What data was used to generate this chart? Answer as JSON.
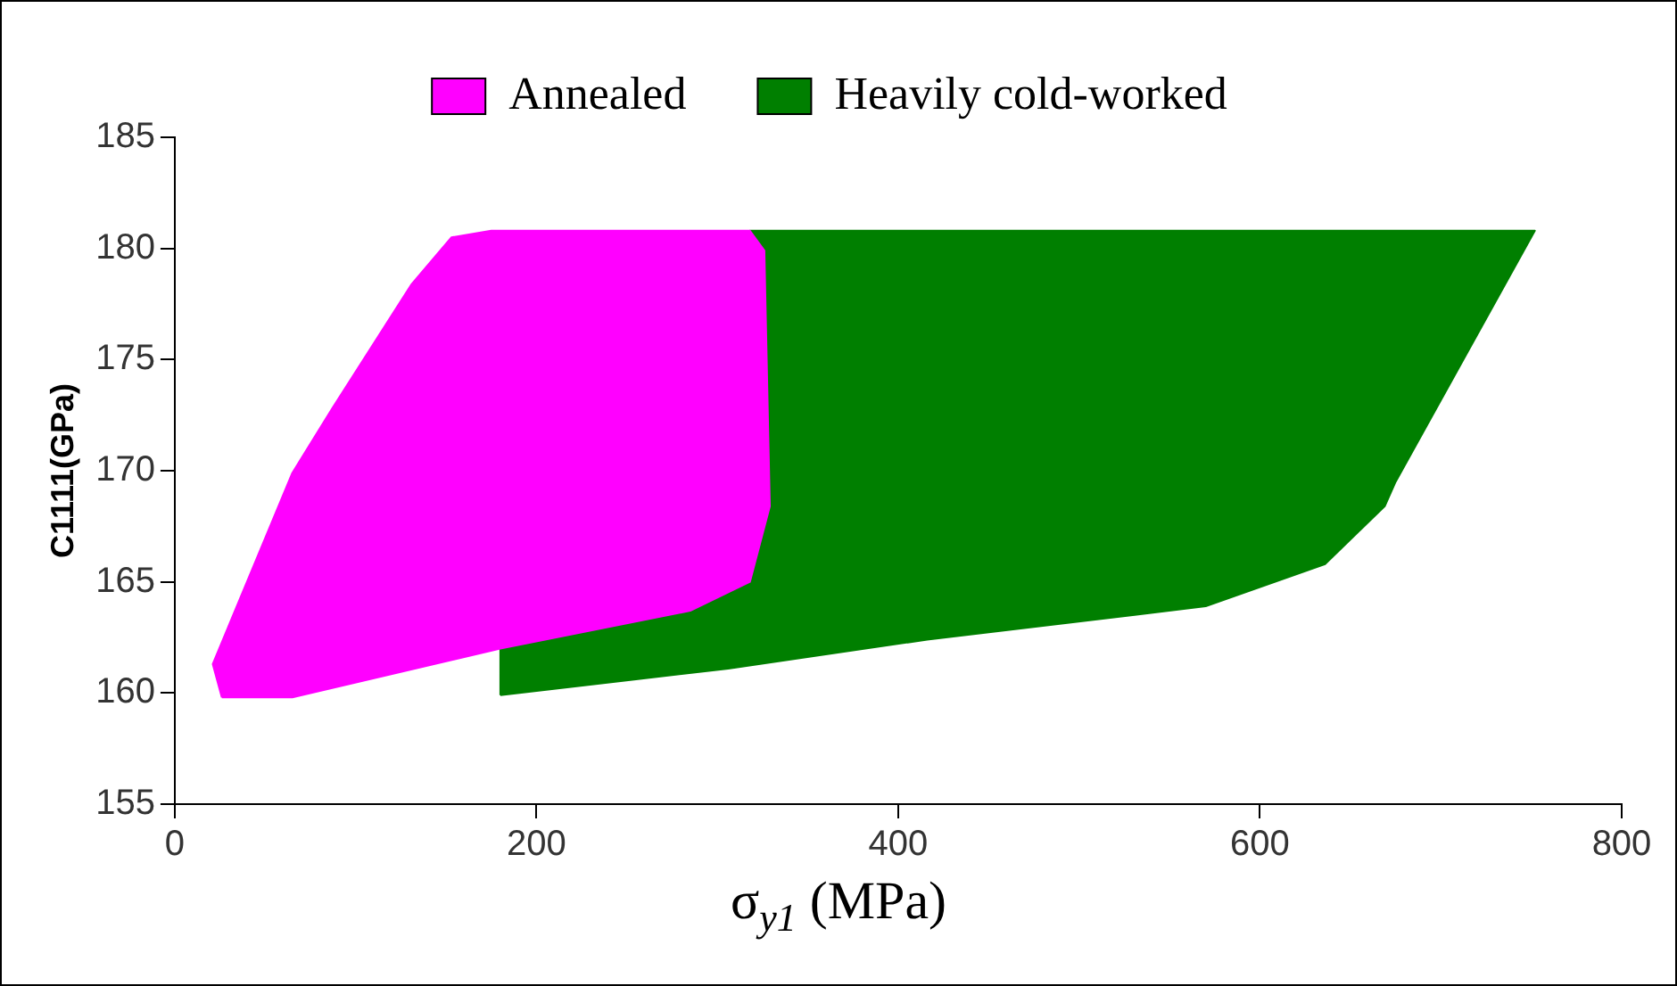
{
  "chart_data": {
    "type": "area",
    "xlabel": "σ$_{y1}$ (MPa)",
    "ylabel": "C1111(GPa)",
    "xlim": [
      0,
      800
    ],
    "xticks": [
      0,
      200,
      400,
      600,
      800
    ],
    "ylim": [
      155,
      185
    ],
    "yticks": [
      155,
      160,
      165,
      170,
      175,
      180,
      185
    ],
    "grid": false,
    "legend": "top",
    "marker": "none",
    "series": [
      {
        "name": "Annealed",
        "color": "#ff00ff",
        "x": [
          26,
          21,
          65,
          87,
          131,
          153,
          175,
          318,
          326,
          329,
          318,
          285,
          180,
          65,
          26
        ],
        "values": [
          159.8,
          161.3,
          169.9,
          172.8,
          178.4,
          180.5,
          180.8,
          180.8,
          179.9,
          168.4,
          165,
          163.7,
          162,
          159.8,
          159.8
        ]
      },
      {
        "name": "Heavily cold-worked",
        "color": "#007f00",
        "x": [
          180,
          180,
          285,
          318,
          329,
          326,
          318,
          752,
          675,
          669,
          636,
          570,
          416,
          306,
          180
        ],
        "values": [
          159.9,
          162,
          163.7,
          165,
          168.4,
          179.9,
          180.8,
          180.8,
          169.5,
          168.4,
          165.8,
          163.9,
          162.4,
          161.1,
          159.9
        ]
      }
    ]
  }
}
